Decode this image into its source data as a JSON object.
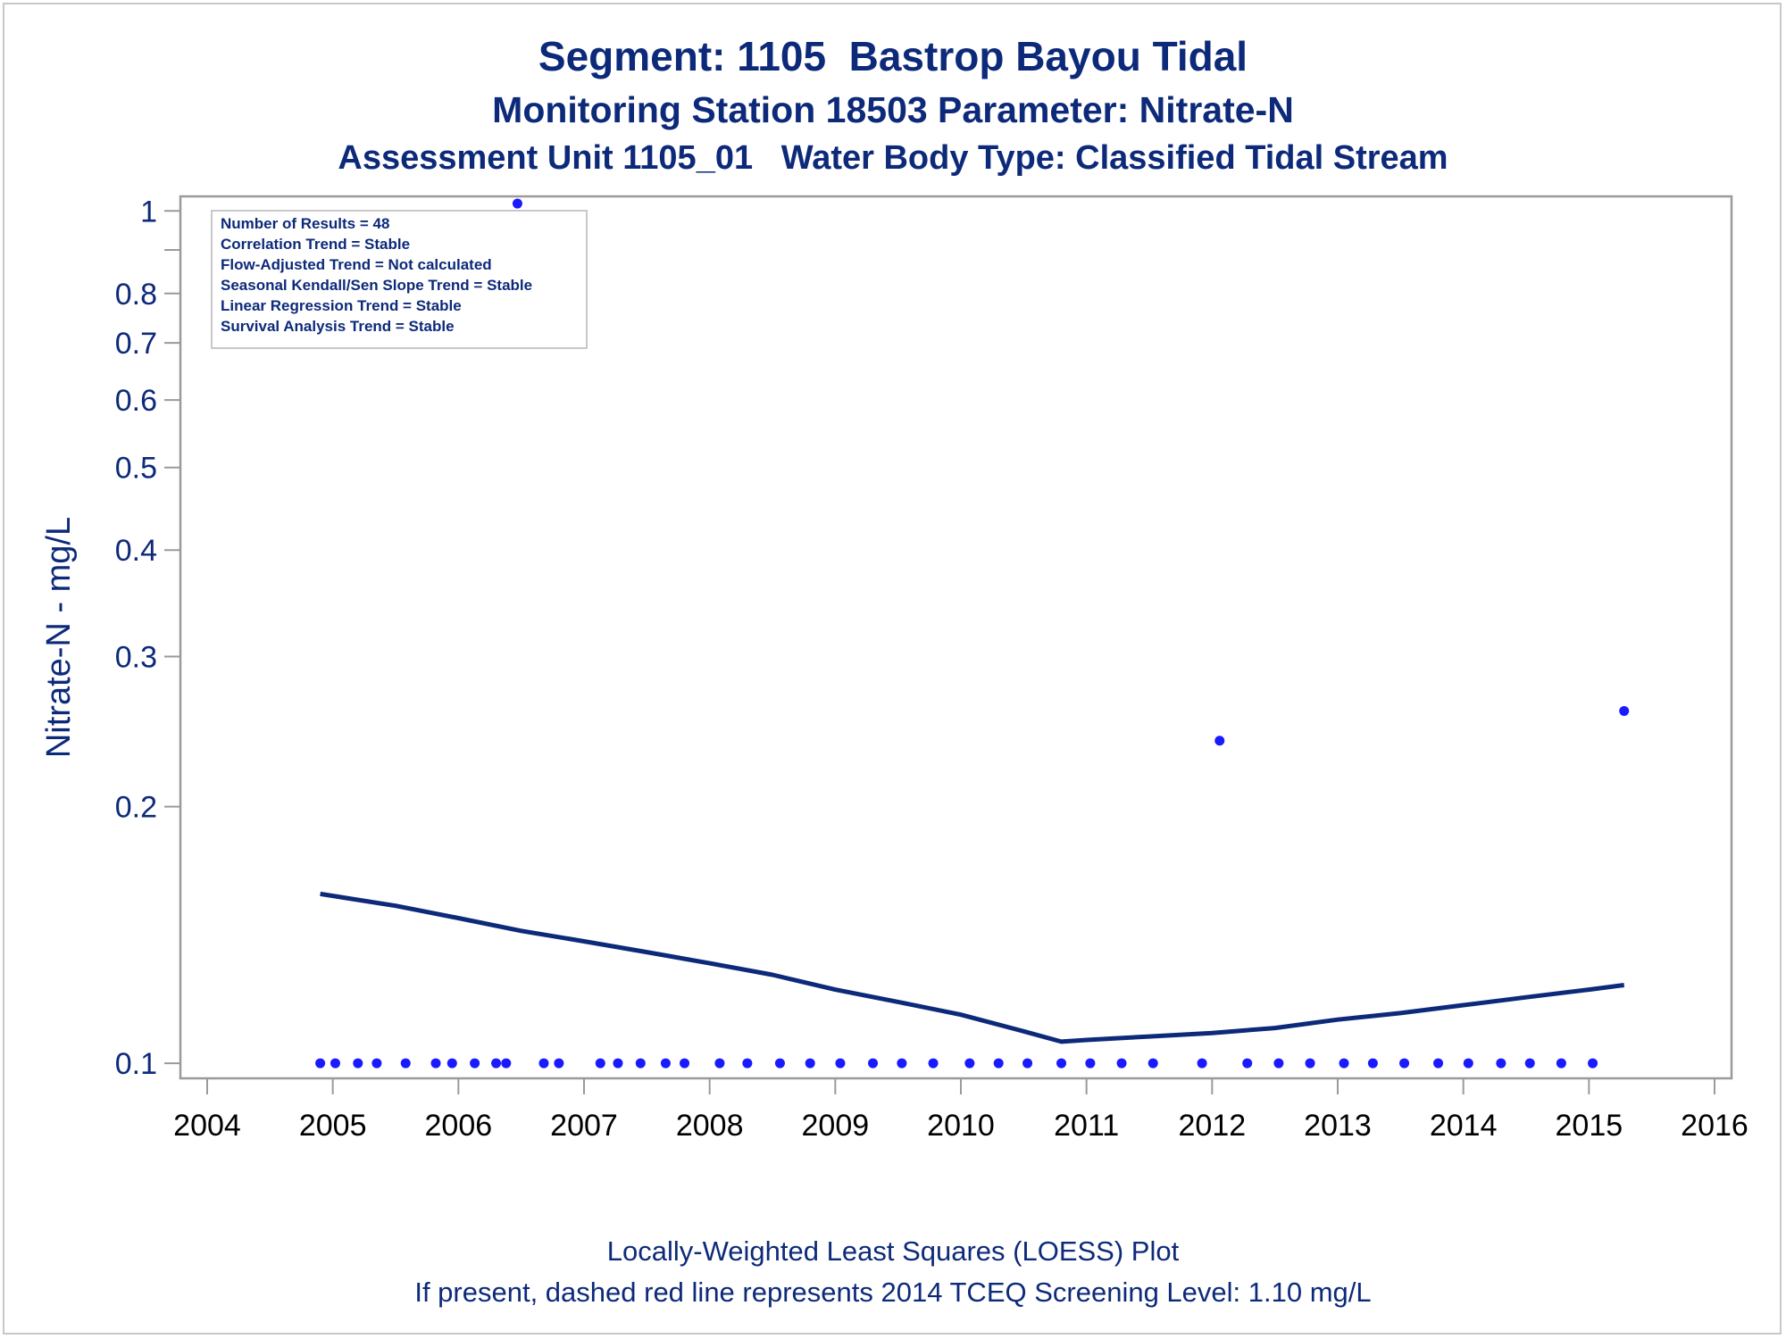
{
  "titles": {
    "line1": "Segment: 1105  Bastrop Bayou Tidal",
    "line2": "Monitoring Station 18503 Parameter: Nitrate-N",
    "line3": "Assessment Unit 1105_01   Water Body Type: Classified Tidal Stream"
  },
  "footnotes": {
    "line1": "Locally-Weighted Least Squares (LOESS) Plot",
    "line2": "If present, dashed red line represents 2014 TCEQ Screening Level: 1.10 mg/L"
  },
  "inset": {
    "lines": [
      "Number of Results = 48",
      "Correlation Trend = Stable",
      "Flow-Adjusted Trend = Not calculated",
      "Seasonal Kendall/Sen Slope Trend = Stable",
      "Linear Regression Trend = Stable",
      "Survival Analysis Trend = Stable"
    ]
  },
  "colors": {
    "text": "#0d2a7a",
    "marker": "#1a1aff",
    "loess": "#0d2a7a",
    "axis": "#9a9a9a"
  },
  "chart_data": {
    "type": "scatter",
    "ylabel": "Nitrate-N - mg/L",
    "xlabel": "",
    "y_scale": "log",
    "xlim": [
      2004,
      2016
    ],
    "ylim": [
      0.096,
      1.04
    ],
    "x_ticks": [
      2004,
      2005,
      2006,
      2007,
      2008,
      2009,
      2010,
      2011,
      2012,
      2013,
      2014,
      2015,
      2016
    ],
    "y_ticks": [
      0.1,
      0.2,
      0.3,
      0.4,
      0.5,
      0.6,
      0.7,
      0.8,
      1
    ],
    "y_tick_labels": [
      "0.1",
      "0.2",
      "0.3",
      "0.4",
      "0.5",
      "0.6",
      "0.7",
      "0.8",
      "1"
    ],
    "y_minor_ticks": [
      0.9
    ],
    "grid": false,
    "legend": "none",
    "series": [
      {
        "type": "scatter",
        "points": [
          {
            "x": 2004.9,
            "y": 0.1
          },
          {
            "x": 2005.02,
            "y": 0.1
          },
          {
            "x": 2005.2,
            "y": 0.1
          },
          {
            "x": 2005.35,
            "y": 0.1
          },
          {
            "x": 2005.58,
            "y": 0.1
          },
          {
            "x": 2005.82,
            "y": 0.1
          },
          {
            "x": 2005.95,
            "y": 0.1
          },
          {
            "x": 2006.13,
            "y": 0.1
          },
          {
            "x": 2006.3,
            "y": 0.1
          },
          {
            "x": 2006.38,
            "y": 0.1
          },
          {
            "x": 2006.47,
            "y": 1.02
          },
          {
            "x": 2006.68,
            "y": 0.1
          },
          {
            "x": 2006.8,
            "y": 0.1
          },
          {
            "x": 2007.13,
            "y": 0.1
          },
          {
            "x": 2007.27,
            "y": 0.1
          },
          {
            "x": 2007.45,
            "y": 0.1
          },
          {
            "x": 2007.65,
            "y": 0.1
          },
          {
            "x": 2007.8,
            "y": 0.1
          },
          {
            "x": 2008.08,
            "y": 0.1
          },
          {
            "x": 2008.3,
            "y": 0.1
          },
          {
            "x": 2008.56,
            "y": 0.1
          },
          {
            "x": 2008.8,
            "y": 0.1
          },
          {
            "x": 2009.04,
            "y": 0.1
          },
          {
            "x": 2009.3,
            "y": 0.1
          },
          {
            "x": 2009.53,
            "y": 0.1
          },
          {
            "x": 2009.78,
            "y": 0.1
          },
          {
            "x": 2010.07,
            "y": 0.1
          },
          {
            "x": 2010.3,
            "y": 0.1
          },
          {
            "x": 2010.53,
            "y": 0.1
          },
          {
            "x": 2010.8,
            "y": 0.1
          },
          {
            "x": 2011.03,
            "y": 0.1
          },
          {
            "x": 2011.28,
            "y": 0.1
          },
          {
            "x": 2011.53,
            "y": 0.1
          },
          {
            "x": 2011.92,
            "y": 0.1
          },
          {
            "x": 2012.06,
            "y": 0.239
          },
          {
            "x": 2012.28,
            "y": 0.1
          },
          {
            "x": 2012.53,
            "y": 0.1
          },
          {
            "x": 2012.78,
            "y": 0.1
          },
          {
            "x": 2013.05,
            "y": 0.1
          },
          {
            "x": 2013.28,
            "y": 0.1
          },
          {
            "x": 2013.53,
            "y": 0.1
          },
          {
            "x": 2013.8,
            "y": 0.1
          },
          {
            "x": 2014.04,
            "y": 0.1
          },
          {
            "x": 2014.3,
            "y": 0.1
          },
          {
            "x": 2014.53,
            "y": 0.1
          },
          {
            "x": 2014.78,
            "y": 0.1
          },
          {
            "x": 2015.03,
            "y": 0.1
          },
          {
            "x": 2015.28,
            "y": 0.259
          }
        ]
      },
      {
        "type": "line",
        "points": [
          {
            "x": 2004.9,
            "y": 0.158
          },
          {
            "x": 2005.5,
            "y": 0.153
          },
          {
            "x": 2006.0,
            "y": 0.148
          },
          {
            "x": 2006.5,
            "y": 0.143
          },
          {
            "x": 2007.0,
            "y": 0.139
          },
          {
            "x": 2007.5,
            "y": 0.135
          },
          {
            "x": 2008.0,
            "y": 0.131
          },
          {
            "x": 2008.5,
            "y": 0.127
          },
          {
            "x": 2009.0,
            "y": 0.122
          },
          {
            "x": 2009.5,
            "y": 0.118
          },
          {
            "x": 2010.0,
            "y": 0.114
          },
          {
            "x": 2010.5,
            "y": 0.109
          },
          {
            "x": 2010.8,
            "y": 0.106
          },
          {
            "x": 2011.0,
            "y": 0.1065
          },
          {
            "x": 2011.5,
            "y": 0.1075
          },
          {
            "x": 2012.0,
            "y": 0.1085
          },
          {
            "x": 2012.5,
            "y": 0.11
          },
          {
            "x": 2013.0,
            "y": 0.1125
          },
          {
            "x": 2013.5,
            "y": 0.1145
          },
          {
            "x": 2014.0,
            "y": 0.117
          },
          {
            "x": 2014.5,
            "y": 0.1195
          },
          {
            "x": 2015.0,
            "y": 0.122
          },
          {
            "x": 2015.28,
            "y": 0.1235
          }
        ]
      }
    ]
  }
}
